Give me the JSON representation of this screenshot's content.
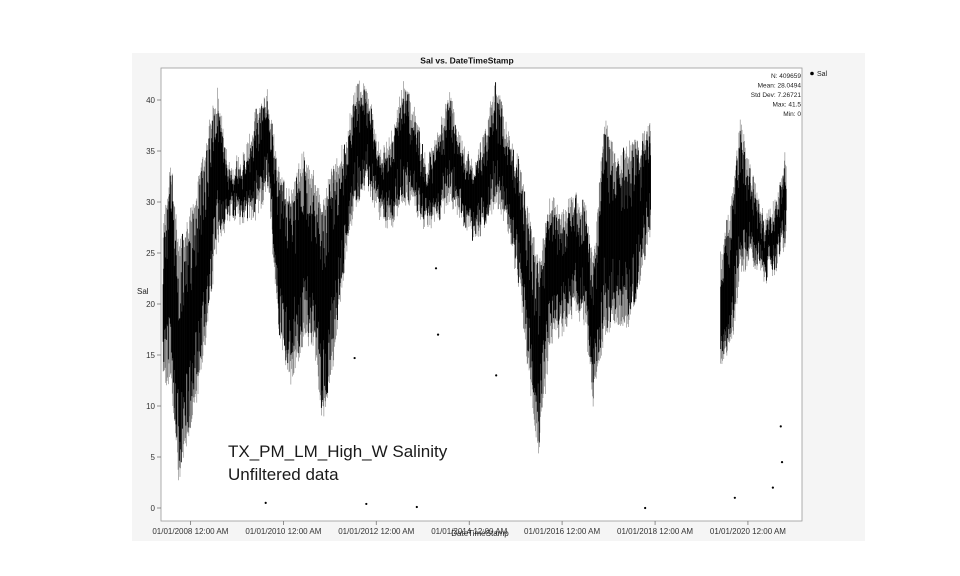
{
  "chart_data": {
    "type": "scatter",
    "title": "Sal vs. DateTimeStamp",
    "xlabel": "DateTimeStamp",
    "ylabel": "Sal",
    "ylim": [
      0,
      42
    ],
    "yticks": [
      0,
      5,
      10,
      15,
      20,
      25,
      30,
      35,
      40
    ],
    "xlim": [
      "2007-05-15",
      "2021-03-01"
    ],
    "xticks": [
      {
        "date": "2008-01-01",
        "label": "01/01/2008 12:00 AM"
      },
      {
        "date": "2010-01-01",
        "label": "01/01/2010 12:00 AM"
      },
      {
        "date": "2012-01-01",
        "label": "01/01/2012 12:00 AM"
      },
      {
        "date": "2014-01-01",
        "label": "01/01/2014 12:00 AM"
      },
      {
        "date": "2016-01-01",
        "label": "01/01/2016 12:00 AM"
      },
      {
        "date": "2018-01-01",
        "label": "01/01/2018 12:00 AM"
      },
      {
        "date": "2020-01-01",
        "label": "01/01/2020 12:00 AM"
      }
    ],
    "legend": {
      "position": "top-right",
      "entries": [
        "Sal"
      ]
    },
    "stats": [
      "N: 409659",
      "Mean: 28.0494",
      "Std Dev: 7.26721",
      "Max: 41.5",
      "Min: 0"
    ],
    "annotation": [
      "TX_PM_LM_High_W Salinity",
      "Unfiltered data"
    ],
    "grid": false,
    "point_color": "#000000",
    "series": [
      {
        "name": "Sal",
        "envelope": [
          {
            "x": "2007-06-01",
            "min": 13,
            "max": 27
          },
          {
            "x": "2007-08-01",
            "min": 13,
            "max": 33
          },
          {
            "x": "2007-10-01",
            "min": 3.5,
            "max": 25
          },
          {
            "x": "2007-12-01",
            "min": 7,
            "max": 27
          },
          {
            "x": "2008-03-01",
            "min": 12,
            "max": 31
          },
          {
            "x": "2008-06-01",
            "min": 20,
            "max": 37
          },
          {
            "x": "2008-08-01",
            "min": 27,
            "max": 40
          },
          {
            "x": "2008-11-01",
            "min": 29,
            "max": 33
          },
          {
            "x": "2009-03-01",
            "min": 29,
            "max": 34
          },
          {
            "x": "2009-06-01",
            "min": 29,
            "max": 38
          },
          {
            "x": "2009-09-01",
            "min": 32,
            "max": 40
          },
          {
            "x": "2009-12-01",
            "min": 18,
            "max": 32
          },
          {
            "x": "2010-03-01",
            "min": 13,
            "max": 30
          },
          {
            "x": "2010-06-01",
            "min": 17,
            "max": 34
          },
          {
            "x": "2010-09-01",
            "min": 17,
            "max": 32
          },
          {
            "x": "2010-11-01",
            "min": 9,
            "max": 29
          },
          {
            "x": "2011-02-01",
            "min": 15,
            "max": 33
          },
          {
            "x": "2011-05-01",
            "min": 25,
            "max": 35
          },
          {
            "x": "2011-08-01",
            "min": 31,
            "max": 41
          },
          {
            "x": "2011-11-01",
            "min": 32,
            "max": 40
          },
          {
            "x": "2012-02-01",
            "min": 29,
            "max": 34
          },
          {
            "x": "2012-05-01",
            "min": 28,
            "max": 36
          },
          {
            "x": "2012-08-01",
            "min": 31,
            "max": 41
          },
          {
            "x": "2012-11-01",
            "min": 30,
            "max": 38
          },
          {
            "x": "2013-02-01",
            "min": 28,
            "max": 33
          },
          {
            "x": "2013-05-01",
            "min": 29,
            "max": 36
          },
          {
            "x": "2013-08-01",
            "min": 31,
            "max": 40
          },
          {
            "x": "2013-11-01",
            "min": 29,
            "max": 35
          },
          {
            "x": "2014-02-01",
            "min": 27,
            "max": 33
          },
          {
            "x": "2014-05-01",
            "min": 28,
            "max": 36
          },
          {
            "x": "2014-08-01",
            "min": 31,
            "max": 41
          },
          {
            "x": "2014-11-01",
            "min": 28,
            "max": 36
          },
          {
            "x": "2015-02-01",
            "min": 22,
            "max": 33
          },
          {
            "x": "2015-05-01",
            "min": 12,
            "max": 27
          },
          {
            "x": "2015-07-01",
            "min": 6,
            "max": 23
          },
          {
            "x": "2015-10-01",
            "min": 17,
            "max": 30
          },
          {
            "x": "2016-01-01",
            "min": 18,
            "max": 28
          },
          {
            "x": "2016-04-01",
            "min": 20,
            "max": 30
          },
          {
            "x": "2016-07-01",
            "min": 19,
            "max": 29
          },
          {
            "x": "2016-09-01",
            "min": 11,
            "max": 23
          },
          {
            "x": "2016-12-01",
            "min": 18,
            "max": 38
          },
          {
            "x": "2017-03-01",
            "min": 19,
            "max": 33
          },
          {
            "x": "2017-06-01",
            "min": 18,
            "max": 35
          },
          {
            "x": "2017-09-01",
            "min": 23,
            "max": 35
          },
          {
            "x": "2017-12-01",
            "min": 28,
            "max": 37
          },
          {
            "x": "2019-06-01",
            "min": 15,
            "max": 24
          },
          {
            "x": "2019-09-01",
            "min": 17,
            "max": 30
          },
          {
            "x": "2019-11-01",
            "min": 24,
            "max": 37
          },
          {
            "x": "2020-02-01",
            "min": 25,
            "max": 32
          },
          {
            "x": "2020-05-01",
            "min": 23,
            "max": 28
          },
          {
            "x": "2020-08-01",
            "min": 24,
            "max": 29
          },
          {
            "x": "2020-11-01",
            "min": 27,
            "max": 35
          }
        ],
        "outliers": [
          {
            "x": "2009-08-15",
            "y": 0.5
          },
          {
            "x": "2011-07-15",
            "y": 14.7
          },
          {
            "x": "2011-10-15",
            "y": 0.4
          },
          {
            "x": "2012-11-15",
            "y": 0.1
          },
          {
            "x": "2013-04-15",
            "y": 23.5
          },
          {
            "x": "2013-05-01",
            "y": 17
          },
          {
            "x": "2014-08-01",
            "y": 13
          },
          {
            "x": "2017-10-15",
            "y": 0
          },
          {
            "x": "2019-09-20",
            "y": 1
          },
          {
            "x": "2020-07-15",
            "y": 2
          },
          {
            "x": "2020-09-15",
            "y": 8
          },
          {
            "x": "2020-09-25",
            "y": 4.5
          }
        ]
      }
    ]
  }
}
